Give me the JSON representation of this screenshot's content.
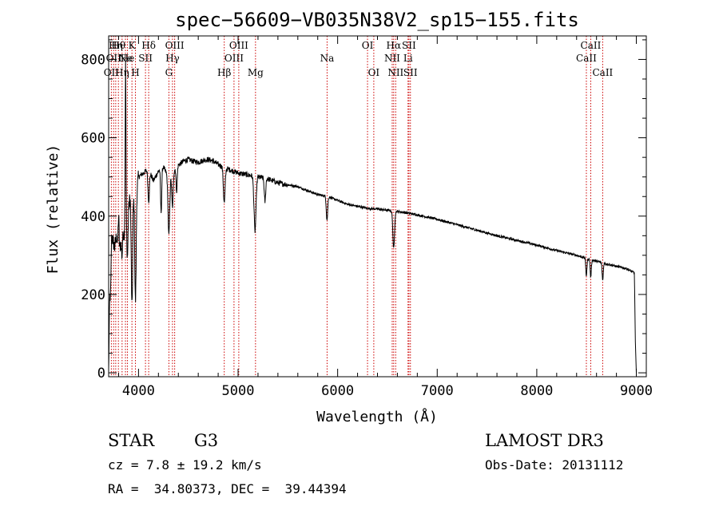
{
  "chart_data": {
    "type": "line",
    "title": "spec−56609−VB035N38V2_sp15−155.fits",
    "xlabel": "Wavelength (Å)",
    "ylabel": "Flux (relative)",
    "xlim": [
      3700,
      9100
    ],
    "ylim": [
      -10,
      860
    ],
    "xticks": [
      4000,
      5000,
      6000,
      7000,
      8000,
      9000
    ],
    "yticks": [
      0,
      200,
      400,
      600,
      800
    ],
    "continuum": {
      "x": [
        3700,
        3720,
        3740,
        3760,
        3780,
        3800,
        3820,
        3840,
        3860,
        3880,
        3900,
        3920,
        3940,
        3960,
        3980,
        4000,
        4050,
        4100,
        4150,
        4200,
        4250,
        4300,
        4350,
        4400,
        4450,
        4500,
        4550,
        4600,
        4650,
        4700,
        4750,
        4800,
        4850,
        4900,
        4950,
        5000,
        5100,
        5200,
        5300,
        5400,
        5500,
        5600,
        5700,
        5800,
        5900,
        6000,
        6100,
        6200,
        6300,
        6400,
        6500,
        6600,
        6700,
        6800,
        7000,
        7200,
        7400,
        7600,
        7800,
        8000,
        8200,
        8400,
        8500,
        8600,
        8700,
        8800,
        8900,
        8980,
        8990,
        9000
      ],
      "y": [
        5,
        360,
        340,
        320,
        350,
        300,
        330,
        370,
        350,
        380,
        420,
        460,
        440,
        480,
        470,
        500,
        510,
        520,
        490,
        515,
        525,
        500,
        515,
        530,
        540,
        545,
        540,
        538,
        542,
        545,
        540,
        532,
        525,
        520,
        515,
        510,
        505,
        500,
        495,
        485,
        480,
        475,
        465,
        455,
        450,
        440,
        430,
        425,
        420,
        418,
        415,
        412,
        408,
        403,
        392,
        378,
        364,
        350,
        338,
        326,
        312,
        300,
        292,
        285,
        278,
        272,
        266,
        255,
        80,
        0
      ]
    },
    "absorption_features": [
      {
        "x": 3720,
        "depth": 150,
        "width": 6
      },
      {
        "x": 3835,
        "depth": 60,
        "width": 8
      },
      {
        "x": 3889,
        "depth": 100,
        "width": 8
      },
      {
        "x": 3934,
        "depth": 280,
        "width": 10
      },
      {
        "x": 3969,
        "depth": 290,
        "width": 10
      },
      {
        "x": 4102,
        "depth": 80,
        "width": 10
      },
      {
        "x": 4227,
        "depth": 110,
        "width": 8
      },
      {
        "x": 4305,
        "depth": 150,
        "width": 12
      },
      {
        "x": 4341,
        "depth": 90,
        "width": 10
      },
      {
        "x": 4383,
        "depth": 60,
        "width": 8
      },
      {
        "x": 4861,
        "depth": 90,
        "width": 12
      },
      {
        "x": 5170,
        "depth": 140,
        "width": 14
      },
      {
        "x": 5270,
        "depth": 60,
        "width": 10
      },
      {
        "x": 5893,
        "depth": 60,
        "width": 10
      },
      {
        "x": 6563,
        "depth": 95,
        "width": 12
      },
      {
        "x": 8498,
        "depth": 45,
        "width": 8
      },
      {
        "x": 8542,
        "depth": 45,
        "width": 8
      },
      {
        "x": 8662,
        "depth": 45,
        "width": 8
      }
    ],
    "emission_features": [
      {
        "x": 3870,
        "height": 420,
        "width": 6
      },
      {
        "x": 3800,
        "height": 100,
        "width": 6
      }
    ],
    "line_markers": [
      {
        "x": 3727,
        "labels": [
          "OII"
        ],
        "row": 3
      },
      {
        "x": 3750,
        "labels": [
          "OII"
        ],
        "row": 2
      },
      {
        "x": 3771,
        "labels": [
          "Hη"
        ],
        "row": 1
      },
      {
        "x": 3798,
        "labels": [
          "Hθ"
        ],
        "row": 1
      },
      {
        "x": 3835,
        "labels": [
          "Hη"
        ],
        "row": 3
      },
      {
        "x": 3869,
        "labels": [
          "Ne"
        ],
        "row": 2
      },
      {
        "x": 3889,
        "labels": [
          "He"
        ],
        "row": 2
      },
      {
        "x": 3934,
        "labels": [
          "K"
        ],
        "row": 1
      },
      {
        "x": 3969,
        "labels": [
          "H"
        ],
        "row": 3
      },
      {
        "x": 4070,
        "labels": [
          "SII"
        ],
        "row": 2
      },
      {
        "x": 4102,
        "labels": [
          "Hδ"
        ],
        "row": 1
      },
      {
        "x": 4305,
        "labels": [
          "G"
        ],
        "row": 3
      },
      {
        "x": 4341,
        "labels": [
          "Hγ"
        ],
        "row": 2
      },
      {
        "x": 4363,
        "labels": [
          "OIII"
        ],
        "row": 1
      },
      {
        "x": 4861,
        "labels": [
          "Hβ"
        ],
        "row": 3
      },
      {
        "x": 4959,
        "labels": [
          "OIII"
        ],
        "row": 2
      },
      {
        "x": 5007,
        "labels": [
          "OIII"
        ],
        "row": 1
      },
      {
        "x": 5175,
        "labels": [
          "Mg"
        ],
        "row": 3
      },
      {
        "x": 5894,
        "labels": [
          "Na"
        ],
        "row": 2
      },
      {
        "x": 6300,
        "labels": [
          "OI"
        ],
        "row": 1
      },
      {
        "x": 6363,
        "labels": [
          "OI"
        ],
        "row": 3
      },
      {
        "x": 6548,
        "labels": [
          "NII"
        ],
        "row": 2
      },
      {
        "x": 6563,
        "labels": [
          "Hα"
        ],
        "row": 1
      },
      {
        "x": 6583,
        "labels": [
          "NII"
        ],
        "row": 3
      },
      {
        "x": 6707,
        "labels": [
          "Li"
        ],
        "row": 2
      },
      {
        "x": 6716,
        "labels": [
          "SII"
        ],
        "row": 1
      },
      {
        "x": 6731,
        "labels": [
          "SII"
        ],
        "row": 3
      },
      {
        "x": 8498,
        "labels": [
          "CaII"
        ],
        "row": 2
      },
      {
        "x": 8542,
        "labels": [
          "CaII"
        ],
        "row": 1
      },
      {
        "x": 8662,
        "labels": [
          "CaII"
        ],
        "row": 3
      }
    ],
    "line_color": "#000000",
    "marker_color": "#cc0000"
  },
  "info": {
    "object_class": "STAR",
    "subclass": "G3",
    "survey": "LAMOST DR3",
    "redshift": "cz = 7.8 ± 19.2 km/s",
    "obs_date": "Obs-Date: 20131112",
    "coords": "RA =  34.80373, DEC =  39.44394"
  }
}
